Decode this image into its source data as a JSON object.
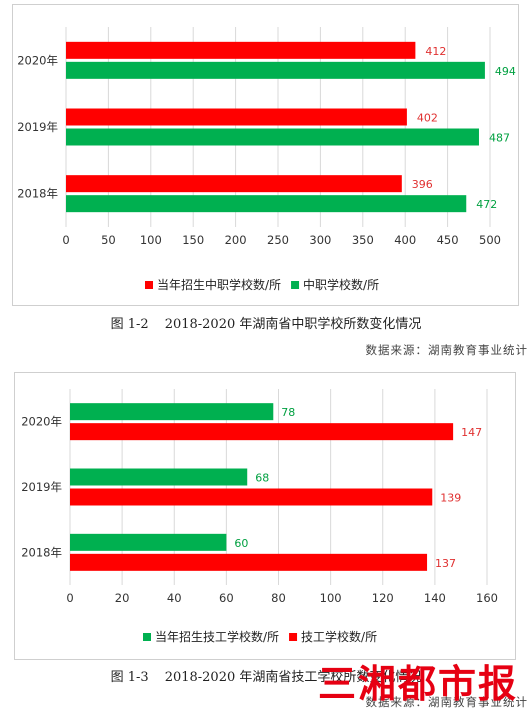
{
  "chart_data": [
    {
      "type": "bar",
      "orientation": "horizontal",
      "categories": [
        "2018年",
        "2019年",
        "2020年"
      ],
      "series": [
        {
          "name": "当年招生中职学校数/所",
          "values": [
            396,
            402,
            412
          ],
          "color": "#ff0000",
          "label_color": "#e03030"
        },
        {
          "name": "中职学校数/所",
          "values": [
            472,
            487,
            494
          ],
          "color": "#00b050",
          "label_color": "#00a040"
        }
      ],
      "xlim": [
        0,
        500
      ],
      "xticks": [
        0,
        50,
        100,
        150,
        200,
        250,
        300,
        350,
        400,
        450,
        500
      ],
      "legend": "bottom",
      "grid": true,
      "caption": {
        "number": "图 1-2",
        "text": "2018-2020 年湖南省中职学校所数变化情况"
      },
      "source": "数据来源：湖南教育事业统计"
    },
    {
      "type": "bar",
      "orientation": "horizontal",
      "categories": [
        "2018年",
        "2019年",
        "2020年"
      ],
      "series": [
        {
          "name": "当年招生技工学校数/所",
          "values": [
            60,
            68,
            78
          ],
          "color": "#00b050",
          "label_color": "#00a040"
        },
        {
          "name": "技工学校数/所",
          "values": [
            137,
            139,
            147
          ],
          "color": "#ff0000",
          "label_color": "#e03030"
        }
      ],
      "xlim": [
        0,
        160
      ],
      "xticks": [
        0,
        20,
        40,
        60,
        80,
        100,
        120,
        140,
        160
      ],
      "legend": "bottom",
      "grid": true,
      "caption": {
        "number": "图 1-3",
        "text": "2018-2020 年湖南省技工学校所数变化情况"
      },
      "source": "数据来源：湖南教育事业统计"
    }
  ],
  "watermark": "三湘都市报"
}
